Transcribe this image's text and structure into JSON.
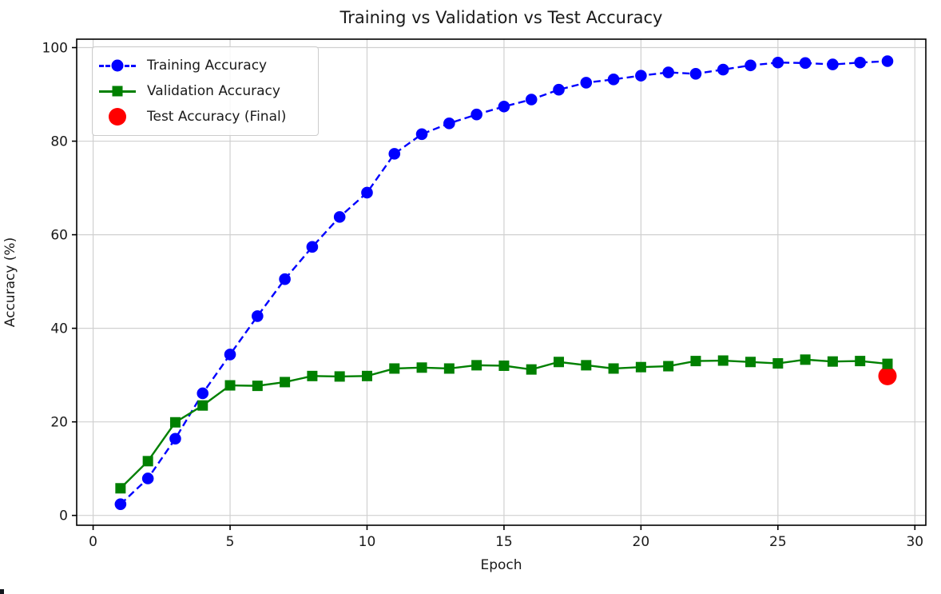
{
  "chart_data": {
    "type": "line",
    "title": "Training vs Validation vs Test Accuracy",
    "xlabel": "Epoch",
    "ylabel": "Accuracy (%)",
    "xlim": [
      -0.6,
      30.4
    ],
    "ylim": [
      -2.1,
      101.8
    ],
    "xticks": [
      0,
      5,
      10,
      15,
      20,
      25,
      30
    ],
    "yticks": [
      0,
      20,
      40,
      60,
      80,
      100
    ],
    "grid": true,
    "legend_position": "upper-left",
    "epochs": [
      1,
      2,
      3,
      4,
      5,
      6,
      7,
      8,
      9,
      10,
      11,
      12,
      13,
      14,
      15,
      16,
      17,
      18,
      19,
      20,
      21,
      22,
      23,
      24,
      25,
      26,
      27,
      28,
      29
    ],
    "series": [
      {
        "name": "Training Accuracy",
        "color": "#0000ff",
        "line_style": "dashed",
        "marker": "circle",
        "values": [
          2.4,
          7.9,
          16.4,
          26.1,
          34.4,
          42.6,
          50.5,
          57.4,
          63.8,
          69.0,
          77.3,
          81.5,
          83.8,
          85.7,
          87.4,
          88.9,
          91.0,
          92.5,
          93.2,
          94.0,
          94.7,
          94.4,
          95.3,
          96.2,
          96.8,
          96.7,
          96.4,
          96.8,
          97.1
        ]
      },
      {
        "name": "Validation Accuracy",
        "color": "#008000",
        "line_style": "solid",
        "marker": "square",
        "values": [
          5.8,
          11.6,
          19.9,
          23.5,
          27.8,
          27.7,
          28.5,
          29.8,
          29.7,
          29.8,
          31.4,
          31.6,
          31.4,
          32.1,
          32.0,
          31.2,
          32.8,
          32.1,
          31.4,
          31.7,
          31.9,
          33.0,
          33.1,
          32.8,
          32.5,
          33.3,
          32.9,
          33.0,
          32.4
        ]
      }
    ],
    "test_point": {
      "name": "Test Accuracy (Final)",
      "color": "#ff0000",
      "epoch": 29,
      "value": 29.8
    },
    "legend": [
      {
        "label": "Training Accuracy",
        "color": "#0000ff",
        "line": "dashed",
        "marker": "circle"
      },
      {
        "label": "Validation Accuracy",
        "color": "#008000",
        "line": "solid",
        "marker": "square"
      },
      {
        "label": "Test Accuracy (Final)",
        "color": "#ff0000",
        "line": "none",
        "marker": "bigdot"
      }
    ],
    "grid_color": "#d0d0d0",
    "spine_color": "#000000",
    "text_color": "#1a1a1a"
  }
}
